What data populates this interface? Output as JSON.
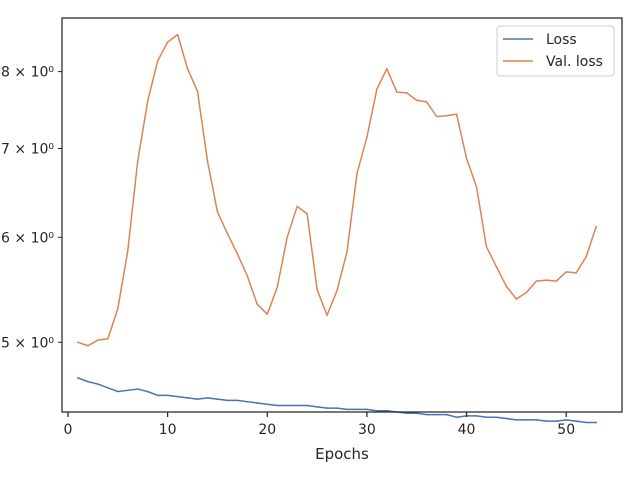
{
  "chart_data": {
    "type": "line",
    "title": "",
    "xlabel": "Epochs",
    "ylabel": "",
    "xlim": [
      -0.6,
      55.6
    ],
    "ylim": [
      4.43,
      8.78
    ],
    "yscale": "log",
    "x_ticks": [
      0,
      10,
      20,
      30,
      40,
      50
    ],
    "y_ticks": [
      {
        "value": 5,
        "label": "5 × 10⁰"
      },
      {
        "value": 6,
        "label": "6 × 10⁰"
      },
      {
        "value": 7,
        "label": "7 × 10⁰"
      },
      {
        "value": 8,
        "label": "8 × 10⁰"
      }
    ],
    "grid": false,
    "legend_position": "top-right",
    "series": [
      {
        "name": "Loss",
        "color": "#4c72b0",
        "x": [
          1,
          2,
          3,
          4,
          5,
          6,
          7,
          8,
          9,
          10,
          11,
          12,
          13,
          14,
          15,
          16,
          17,
          18,
          19,
          20,
          21,
          22,
          23,
          24,
          25,
          26,
          27,
          28,
          29,
          30,
          31,
          32,
          33,
          34,
          35,
          36,
          37,
          38,
          39,
          40,
          41,
          42,
          43,
          44,
          45,
          46,
          47,
          48,
          49,
          50,
          51,
          52,
          53
        ],
        "values": [
          4.7,
          4.67,
          4.65,
          4.62,
          4.59,
          4.6,
          4.61,
          4.59,
          4.56,
          4.56,
          4.55,
          4.54,
          4.53,
          4.54,
          4.53,
          4.52,
          4.52,
          4.51,
          4.5,
          4.49,
          4.48,
          4.48,
          4.48,
          4.48,
          4.47,
          4.46,
          4.46,
          4.45,
          4.45,
          4.45,
          4.44,
          4.44,
          4.43,
          4.42,
          4.42,
          4.41,
          4.41,
          4.41,
          4.39,
          4.4,
          4.4,
          4.39,
          4.39,
          4.38,
          4.37,
          4.37,
          4.37,
          4.36,
          4.36,
          4.37,
          4.36,
          4.35,
          4.35
        ]
      },
      {
        "name": "Val. loss",
        "color": "#dd8452",
        "x": [
          1,
          2,
          3,
          4,
          5,
          6,
          7,
          8,
          9,
          10,
          11,
          12,
          13,
          14,
          15,
          16,
          17,
          18,
          19,
          20,
          21,
          22,
          23,
          24,
          25,
          26,
          27,
          28,
          29,
          30,
          31,
          32,
          33,
          34,
          35,
          36,
          37,
          38,
          39,
          40,
          41,
          42,
          43,
          44,
          45,
          46,
          47,
          48,
          49,
          50,
          51,
          52,
          53
        ],
        "values": [
          5.0,
          4.97,
          5.02,
          5.03,
          5.3,
          5.86,
          6.85,
          7.6,
          8.15,
          8.42,
          8.53,
          8.04,
          7.73,
          6.85,
          6.27,
          6.04,
          5.83,
          5.61,
          5.34,
          5.25,
          5.5,
          6.0,
          6.33,
          6.25,
          5.48,
          5.24,
          5.47,
          5.85,
          6.7,
          7.14,
          7.76,
          8.04,
          7.72,
          7.71,
          7.61,
          7.59,
          7.4,
          7.41,
          7.43,
          6.88,
          6.55,
          5.9,
          5.7,
          5.51,
          5.39,
          5.45,
          5.56,
          5.57,
          5.56,
          5.65,
          5.64,
          5.8,
          6.11
        ]
      }
    ]
  }
}
